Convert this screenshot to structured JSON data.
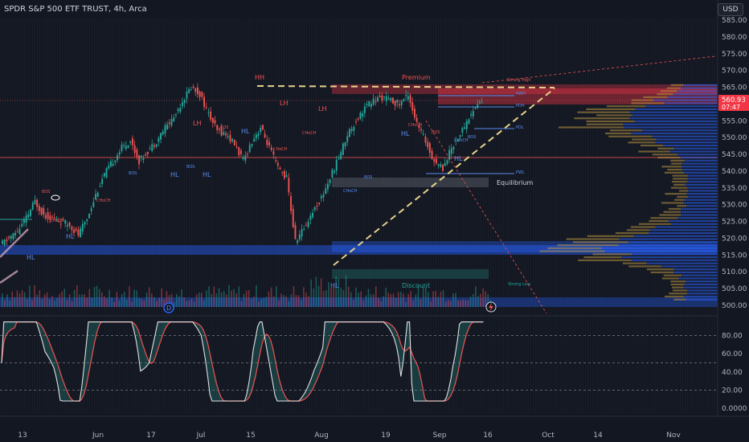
{
  "header": {
    "title": "SPDR S&P 500 ETF TRUST, 4h, Arca",
    "currency_button": "USD"
  },
  "colors": {
    "background": "#131722",
    "bull": "#26a69a",
    "bear": "#ef5350",
    "blue_zone": "#2962ff",
    "red_zone": "#f23645",
    "yellow_line": "#e6d18b",
    "stoch_k": "#e0e0e0",
    "stoch_d": "#ef5350"
  },
  "chart_data": {
    "type": "candlestick",
    "price_axis": {
      "ticks": [
        "585.00",
        "580.00",
        "575.00",
        "570.00",
        "565.00",
        "560.00",
        "555.00",
        "550.00",
        "545.00",
        "540.00",
        "535.00",
        "530.00",
        "525.00",
        "520.00",
        "515.00",
        "510.00",
        "505.00",
        "500.00"
      ],
      "ylim": [
        497,
        587
      ]
    },
    "last_price": {
      "value": "560.93",
      "countdown": "07:47"
    },
    "oscillator_axis": {
      "ticks": [
        "80.00",
        "60.00",
        "40.00",
        "20.00",
        "0.0000"
      ],
      "levels": [
        80,
        50,
        20
      ],
      "ylim": [
        0,
        100
      ]
    },
    "x_axis": {
      "ticks": [
        "13",
        "Jun",
        "17",
        "Jul",
        "15",
        "Aug",
        "19",
        "Sep",
        "16",
        "Oct",
        "14",
        "Nov"
      ]
    },
    "price_path": [
      [
        0,
        518
      ],
      [
        2,
        520
      ],
      [
        4,
        522
      ],
      [
        6,
        526
      ],
      [
        8,
        531
      ],
      [
        10,
        527
      ],
      [
        12,
        526
      ],
      [
        14,
        525
      ],
      [
        16,
        524
      ],
      [
        18,
        521
      ],
      [
        20,
        526
      ],
      [
        22,
        533
      ],
      [
        24,
        539
      ],
      [
        26,
        543
      ],
      [
        28,
        547
      ],
      [
        30,
        549
      ],
      [
        32,
        543
      ],
      [
        34,
        546
      ],
      [
        36,
        549
      ],
      [
        38,
        553
      ],
      [
        40,
        556
      ],
      [
        42,
        561
      ],
      [
        44,
        565
      ],
      [
        46,
        563
      ],
      [
        48,
        557
      ],
      [
        50,
        552
      ],
      [
        52,
        551
      ],
      [
        54,
        548
      ],
      [
        56,
        543
      ],
      [
        58,
        549
      ],
      [
        60,
        553
      ],
      [
        62,
        547
      ],
      [
        64,
        541
      ],
      [
        66,
        538
      ],
      [
        68,
        519
      ],
      [
        70,
        523
      ],
      [
        72,
        528
      ],
      [
        74,
        532
      ],
      [
        76,
        538
      ],
      [
        78,
        544
      ],
      [
        80,
        551
      ],
      [
        82,
        555
      ],
      [
        84,
        559
      ],
      [
        86,
        561
      ],
      [
        88,
        562
      ],
      [
        90,
        561
      ],
      [
        92,
        560
      ],
      [
        94,
        563
      ],
      [
        96,
        554
      ],
      [
        98,
        549
      ],
      [
        100,
        543
      ],
      [
        102,
        541
      ],
      [
        104,
        547
      ],
      [
        106,
        551
      ],
      [
        108,
        556
      ],
      [
        110,
        560
      ],
      [
        111,
        560.93
      ]
    ],
    "annotations": {
      "structure": [
        "HH",
        "LH",
        "LH",
        "LH",
        "HL",
        "HL",
        "HL",
        "HL",
        "HL",
        "HL",
        "HL",
        "HL"
      ],
      "small_tags": [
        "CHoCH",
        "CHoCH",
        "CHoCH",
        "CHoCH",
        "CHoCH",
        "CHoCH",
        "CHoCH",
        "BOS",
        "BOS",
        "BOS",
        "BOS",
        "BOS",
        "BOS",
        "BOS"
      ],
      "zones": {
        "premium": "Premium",
        "equilibrium": "Equilibrium",
        "discount": "Discount"
      },
      "levels": {
        "pwh": "PWH",
        "pdh": "PDH",
        "pdl": "PDL",
        "pwl": "PWL",
        "strong_high": "Strong High",
        "strong_low": "Strong Low"
      }
    }
  }
}
